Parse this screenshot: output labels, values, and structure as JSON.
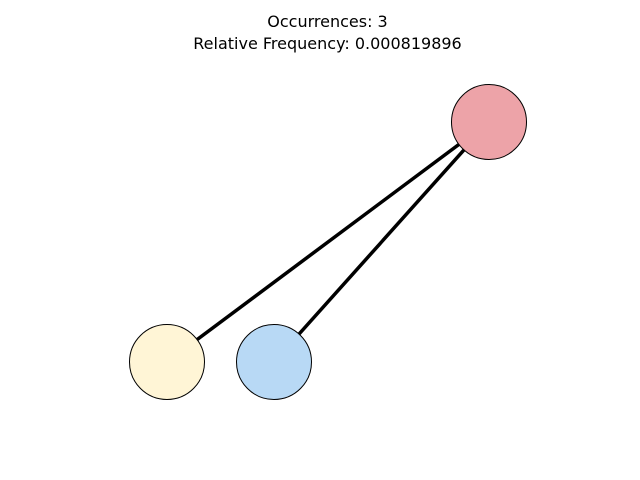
{
  "title": {
    "occurrences_line": "Occurrences: 3",
    "frequency_line": "Relative Frequency: 0.000819896"
  },
  "graph": {
    "nodes": [
      {
        "id": "red-node",
        "color": "#eda3a8"
      },
      {
        "id": "yellow-node",
        "color": "#fff5d6"
      },
      {
        "id": "blue-node",
        "color": "#b8d9f5"
      }
    ],
    "edges": [
      {
        "from": "red-node",
        "to": "yellow-node"
      },
      {
        "from": "red-node",
        "to": "blue-node"
      }
    ],
    "edge_color": "#000000",
    "node_outline_color": "#000000"
  }
}
